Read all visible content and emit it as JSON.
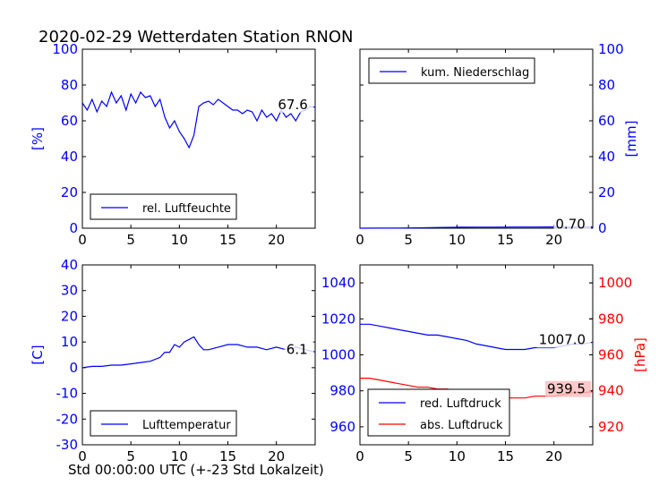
{
  "figure": {
    "title": "2020-02-29 Wetterdaten Station RNON",
    "xlabel": "Std 00:00:00 UTC (+-23 Std Lokalzeit)"
  },
  "colors": {
    "blue": "#0000ff",
    "red": "#ff0000",
    "axis": "#000000",
    "redBox": "#ffbbbb"
  },
  "chart_data": [
    {
      "type": "line",
      "panel": "top-left",
      "ylabel": "[%]",
      "xlim": [
        0,
        24
      ],
      "ylim": [
        0,
        100
      ],
      "xticks": [
        0,
        5,
        10,
        15,
        20
      ],
      "yticks": [
        0,
        20,
        40,
        60,
        80,
        100
      ],
      "legend": "bottom-left",
      "annotation": "67.6",
      "series": [
        {
          "name": "rel. Luftfeuchte",
          "color": "#0000ff",
          "x": [
            0,
            0.5,
            1,
            1.5,
            2,
            2.5,
            3,
            3.5,
            4,
            4.5,
            5,
            5.5,
            6,
            6.5,
            7,
            7.5,
            8,
            8.5,
            9,
            9.5,
            10,
            10.5,
            11,
            11.5,
            12,
            12.5,
            13,
            13.5,
            14,
            14.5,
            15,
            15.5,
            16,
            16.5,
            17,
            17.5,
            18,
            18.5,
            19,
            19.5,
            20,
            20.5,
            21,
            21.5,
            22,
            22.5,
            23,
            23.5,
            24
          ],
          "y": [
            70,
            66,
            72,
            65,
            71,
            68,
            76,
            70,
            74,
            66,
            75,
            70,
            76,
            73,
            74,
            68,
            72,
            62,
            56,
            60,
            54,
            50,
            45,
            52,
            68,
            70,
            71,
            69,
            72,
            70,
            68,
            66,
            66,
            64,
            66,
            65,
            60,
            66,
            62,
            64,
            60,
            66,
            62,
            64,
            60,
            65,
            66,
            68,
            67.6
          ]
        }
      ]
    },
    {
      "type": "line",
      "panel": "top-right",
      "ylabel": "[mm]",
      "xlim": [
        0,
        24
      ],
      "ylim": [
        0,
        100
      ],
      "xticks": [
        0,
        5,
        10,
        15,
        20
      ],
      "yticks": [
        0,
        20,
        40,
        60,
        80,
        100
      ],
      "legend": "top-left",
      "annotation": "0.70",
      "series": [
        {
          "name": "kum. Niederschlag",
          "color": "#0000ff",
          "x": [
            0,
            2,
            4,
            6,
            8,
            10,
            12,
            14,
            16,
            18,
            20,
            22,
            24
          ],
          "y": [
            0,
            0.05,
            0.1,
            0.2,
            0.4,
            0.55,
            0.6,
            0.62,
            0.65,
            0.67,
            0.68,
            0.69,
            0.7
          ]
        }
      ]
    },
    {
      "type": "line",
      "panel": "bottom-left",
      "ylabel": "[C]",
      "xlim": [
        0,
        24
      ],
      "ylim": [
        -30,
        40
      ],
      "xticks": [
        0,
        5,
        10,
        15,
        20
      ],
      "yticks": [
        -30,
        -20,
        -10,
        0,
        10,
        20,
        30,
        40
      ],
      "legend": "bottom-left",
      "annotation": "6.1",
      "series": [
        {
          "name": "Lufttemperatur",
          "color": "#0000ff",
          "x": [
            0,
            1,
            2,
            3,
            4,
            5,
            6,
            7,
            8,
            8.5,
            9,
            9.5,
            10,
            10.5,
            11,
            11.5,
            12,
            12.5,
            13,
            14,
            15,
            16,
            17,
            18,
            19,
            20,
            21,
            22,
            23,
            24
          ],
          "y": [
            0,
            0.5,
            0.5,
            1,
            1,
            1.5,
            2,
            2.5,
            4,
            6,
            6,
            9,
            8,
            10,
            11,
            12,
            9,
            7,
            7,
            8,
            9,
            9,
            8,
            8,
            7,
            8,
            7,
            8,
            7,
            6.1
          ]
        }
      ]
    },
    {
      "type": "line",
      "panel": "bottom-right",
      "ylabel": "[hPa]",
      "xlim": [
        0,
        24
      ],
      "ylim": [
        950,
        1050
      ],
      "ylim_right": [
        910,
        1010
      ],
      "xticks": [
        0,
        5,
        10,
        15,
        20
      ],
      "yticks": [
        960,
        980,
        1000,
        1020,
        1040
      ],
      "yticks_right": [
        920,
        940,
        960,
        980,
        1000
      ],
      "legend": "bottom-left",
      "annotations": [
        "1007.0",
        "939.5"
      ],
      "series": [
        {
          "name": "red. Luftdruck",
          "color": "#0000ff",
          "axis": "left",
          "x": [
            0,
            1,
            2,
            3,
            4,
            5,
            6,
            7,
            8,
            9,
            10,
            11,
            12,
            13,
            14,
            15,
            16,
            17,
            18,
            19,
            20,
            21,
            22,
            23,
            24
          ],
          "y": [
            1017,
            1017,
            1016,
            1015,
            1014,
            1013,
            1012,
            1011,
            1011,
            1010,
            1009,
            1008,
            1006,
            1005,
            1004,
            1003,
            1003,
            1003,
            1004,
            1004,
            1004,
            1005,
            1006,
            1006,
            1007
          ]
        },
        {
          "name": "abs. Luftdruck",
          "color": "#ff0000",
          "axis": "right",
          "x": [
            0,
            1,
            2,
            3,
            4,
            5,
            6,
            7,
            8,
            9,
            10,
            11,
            12,
            13,
            14,
            15,
            16,
            17,
            18,
            19,
            20,
            21,
            22,
            23,
            24
          ],
          "y": [
            947,
            947,
            946,
            945,
            944,
            943,
            942,
            942,
            941,
            941,
            940,
            940,
            939,
            937,
            936,
            936,
            936,
            936,
            937,
            937,
            937,
            938,
            939,
            939,
            939.5
          ]
        }
      ]
    }
  ]
}
